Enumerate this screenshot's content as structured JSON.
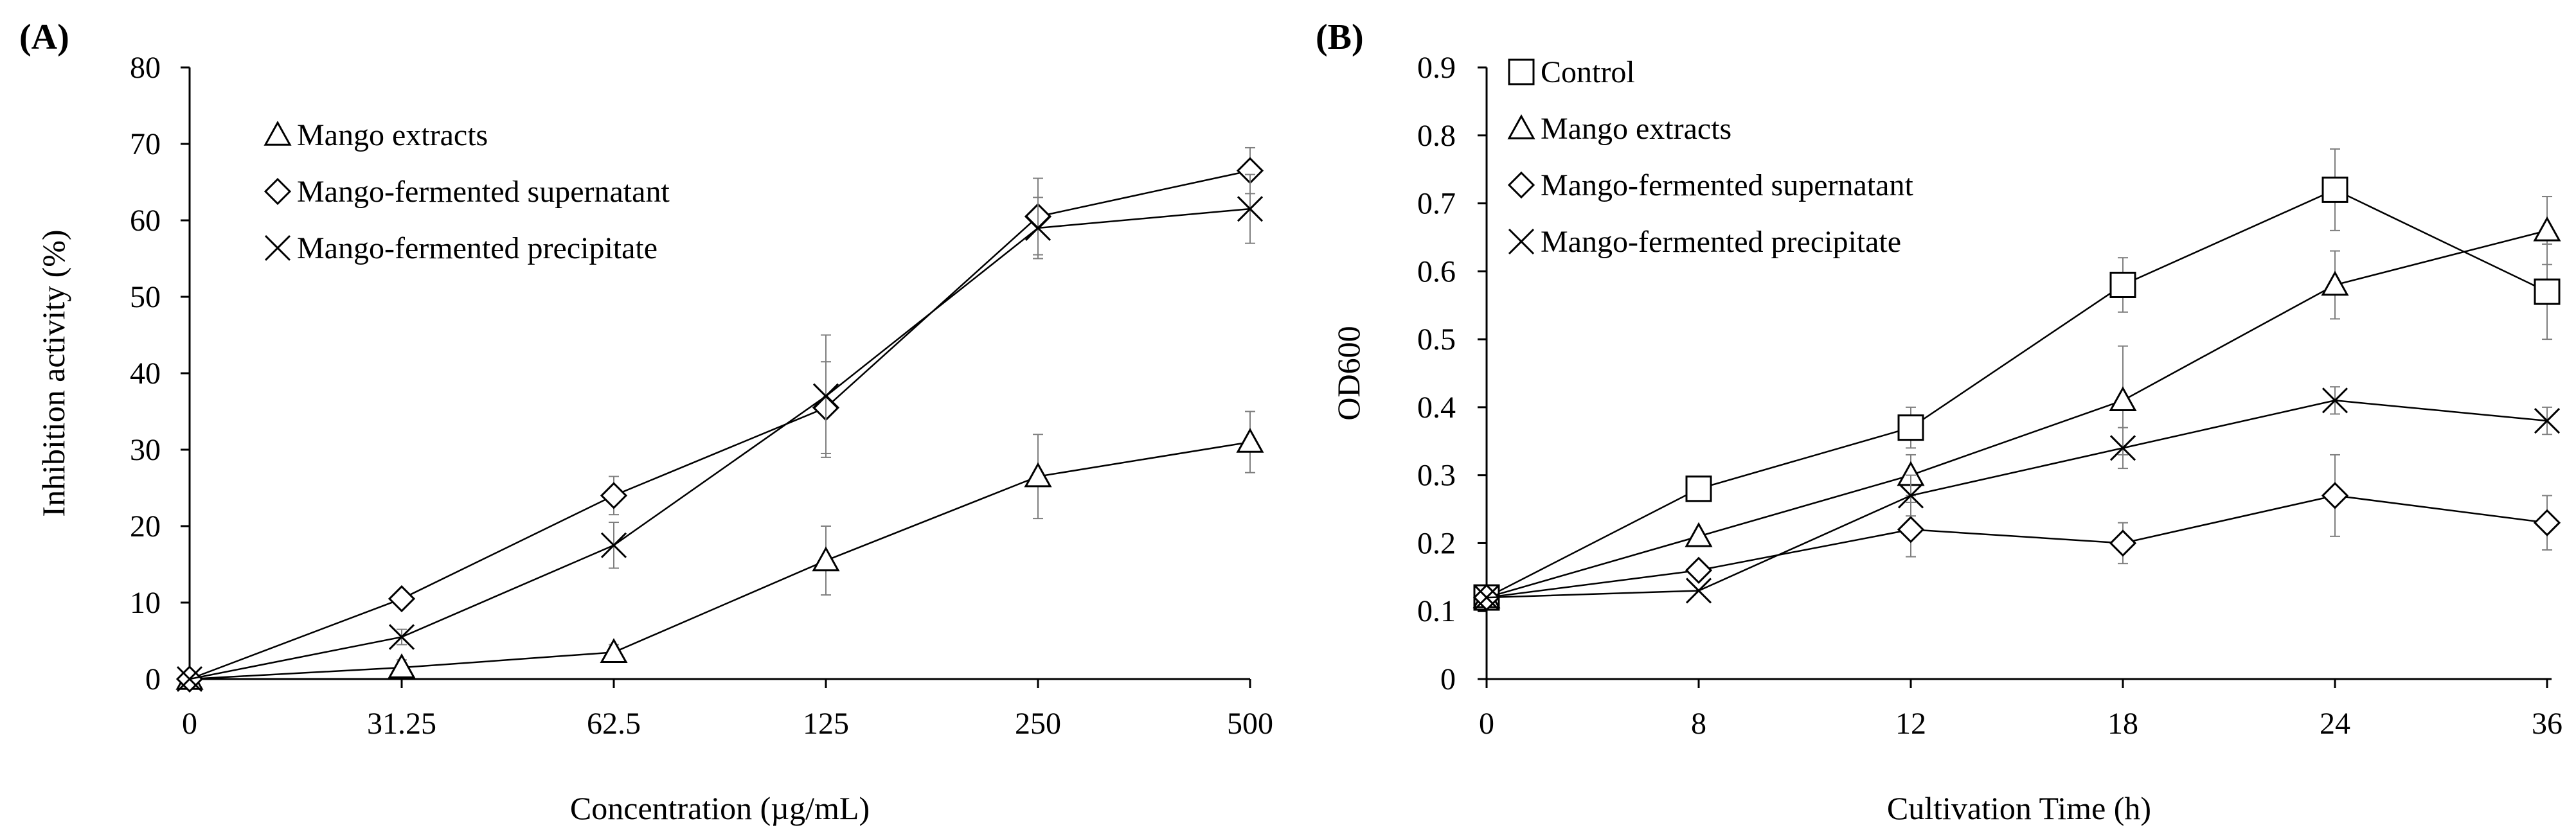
{
  "chart_data": [
    {
      "panel_label": "(A)",
      "type": "line",
      "xlabel": "Concentration (µg/mL)",
      "ylabel": "Inhibition activity (%)",
      "categories": [
        "0",
        "31.25",
        "62.5",
        "125",
        "250",
        "500"
      ],
      "ylim": [
        0,
        80
      ],
      "yticks": [
        "0",
        "10",
        "20",
        "30",
        "40",
        "50",
        "60",
        "70",
        "80"
      ],
      "grid": false,
      "legend_position": "top-left",
      "series": [
        {
          "name": "Mango extracts",
          "marker": "triangle",
          "values": [
            0,
            1.5,
            3.5,
            15.5,
            26.5,
            31
          ],
          "errors": [
            0,
            1.0,
            1.0,
            4.5,
            5.5,
            4.0
          ]
        },
        {
          "name": "Mango-fermented supernatant",
          "marker": "diamond",
          "values": [
            0,
            10.5,
            24,
            35.5,
            60.5,
            66.5
          ],
          "errors": [
            0,
            1.0,
            2.5,
            6.0,
            5.0,
            3.0
          ]
        },
        {
          "name": "Mango-fermented precipitate",
          "marker": "x",
          "values": [
            0,
            5.5,
            17.5,
            37,
            59,
            61.5
          ],
          "errors": [
            0,
            1.0,
            3.0,
            8.0,
            4.0,
            4.5
          ]
        }
      ]
    },
    {
      "panel_label": "(B)",
      "type": "line",
      "xlabel": "Cultivation Time (h)",
      "ylabel": "OD600",
      "categories": [
        "0",
        "8",
        "12",
        "18",
        "24",
        "36"
      ],
      "ylim": [
        0,
        0.9
      ],
      "yticks": [
        "0",
        "0.1",
        "0.2",
        "0.3",
        "0.4",
        "0.5",
        "0.6",
        "0.7",
        "0.8",
        "0.9"
      ],
      "grid": false,
      "legend_position": "top-left",
      "series": [
        {
          "name": "Control",
          "marker": "square",
          "values": [
            0.12,
            0.28,
            0.37,
            0.58,
            0.72,
            0.57
          ],
          "errors": [
            0,
            0,
            0.03,
            0.04,
            0.06,
            0.07
          ]
        },
        {
          "name": "Mango extracts",
          "marker": "triangle",
          "values": [
            0.12,
            0.21,
            0.3,
            0.41,
            0.58,
            0.66
          ],
          "errors": [
            0,
            0,
            0.03,
            0.08,
            0.05,
            0.05
          ]
        },
        {
          "name": "Mango-fermented supernatant",
          "marker": "diamond",
          "values": [
            0.12,
            0.16,
            0.22,
            0.2,
            0.27,
            0.23
          ],
          "errors": [
            0,
            0,
            0.04,
            0.03,
            0.06,
            0.04
          ]
        },
        {
          "name": "Mango-fermented precipitate",
          "marker": "x",
          "values": [
            0.12,
            0.13,
            0.27,
            0.34,
            0.41,
            0.38
          ],
          "errors": [
            0,
            0,
            0.03,
            0.03,
            0.02,
            0.02
          ]
        }
      ]
    }
  ]
}
